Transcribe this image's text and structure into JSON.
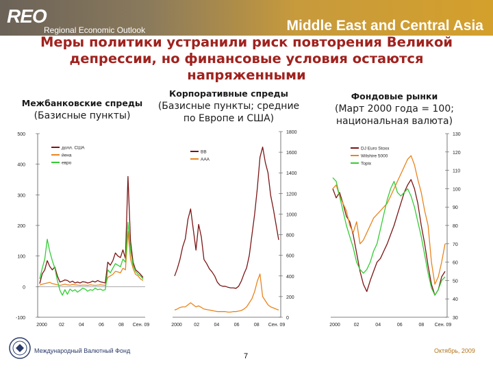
{
  "header": {
    "logo": "REO",
    "logo_subtitle": "Regional Economic Outlook",
    "region": "Middle East and Central Asia"
  },
  "slide_title": "Меры политики устранили риск повторения Великой депрессии, но финансовые условия остаются напряженными",
  "footer": {
    "org": "Международный Валютный Фонд",
    "page": "7",
    "date": "Октябрь, 2009"
  },
  "colors": {
    "dark_red": "#7a1414",
    "orange": "#e8841c",
    "green": "#33cc33",
    "title_red": "#a0221e"
  },
  "chart_data": [
    {
      "type": "line",
      "title": "Межбанковские спреды",
      "subtitle": "(Базисные пункты)",
      "x_tick_labels": [
        "2000",
        "02",
        "04",
        "06",
        "08",
        "Сен. 09"
      ],
      "y_tick_labels": [
        "500",
        "400",
        "300",
        "200",
        "100",
        "0",
        "-100"
      ],
      "ylim": [
        -100,
        500
      ],
      "series": [
        {
          "name": "долл. США",
          "color": "#7a1414",
          "values": [
            10,
            42,
            55,
            85,
            66,
            55,
            64,
            35,
            15,
            18,
            22,
            20,
            14,
            18,
            12,
            15,
            12,
            16,
            15,
            12,
            14,
            18,
            15,
            20,
            16,
            14,
            12,
            80,
            70,
            85,
            110,
            100,
            95,
            120,
            92,
            360,
            150,
            80,
            55,
            48,
            40,
            30
          ]
        },
        {
          "name": "йена",
          "color": "#e8841c",
          "values": [
            5,
            8,
            10,
            12,
            14,
            10,
            8,
            6,
            4,
            6,
            8,
            6,
            5,
            7,
            6,
            5,
            4,
            5,
            5,
            4,
            6,
            5,
            4,
            5,
            6,
            5,
            4,
            30,
            35,
            40,
            50,
            48,
            45,
            60,
            55,
            180,
            90,
            60,
            40,
            35,
            25,
            20
          ]
        },
        {
          "name": "евро",
          "color": "#33cc33",
          "values": [
            25,
            60,
            90,
            155,
            115,
            85,
            60,
            20,
            -12,
            -28,
            -10,
            -25,
            -8,
            -15,
            -10,
            -18,
            -12,
            -5,
            -8,
            -15,
            -10,
            -12,
            -5,
            -10,
            -8,
            -12,
            -10,
            55,
            45,
            60,
            75,
            70,
            65,
            90,
            80,
            210,
            120,
            70,
            50,
            40,
            35,
            25
          ]
        }
      ]
    },
    {
      "type": "line",
      "title": "Корпоративные спреды",
      "subtitle": "(Базисные пункты; средние по Европе и США)",
      "x_tick_labels": [
        "2000",
        "02",
        "04",
        "06",
        "08",
        "Сен. 09"
      ],
      "y_tick_labels": [
        "1800",
        "1600",
        "1400",
        "1200",
        "1000",
        "800",
        "600",
        "400",
        "200",
        "0"
      ],
      "ylim": [
        0,
        1800
      ],
      "series": [
        {
          "name": "BB",
          "color": "#7a1414",
          "values": [
            400,
            470,
            560,
            680,
            760,
            950,
            1050,
            850,
            650,
            900,
            780,
            560,
            520,
            470,
            440,
            400,
            340,
            310,
            300,
            300,
            290,
            285,
            285,
            280,
            300,
            350,
            420,
            480,
            600,
            800,
            1000,
            1250,
            1550,
            1650,
            1500,
            1400,
            1180,
            1050,
            900,
            750
          ]
        },
        {
          "name": "AAA",
          "color": "#e8841c",
          "values": [
            70,
            80,
            95,
            100,
            100,
            120,
            140,
            120,
            100,
            110,
            95,
            80,
            75,
            70,
            65,
            60,
            55,
            55,
            55,
            55,
            50,
            50,
            55,
            55,
            60,
            65,
            80,
            100,
            140,
            180,
            250,
            350,
            420,
            200,
            160,
            120,
            100,
            90,
            80,
            70
          ]
        }
      ]
    },
    {
      "type": "line",
      "title": "Фондовые рынки",
      "subtitle": "(Март 2000 года = 100; национальная валюта)",
      "x_tick_labels": [
        "2000",
        "02",
        "04",
        "06",
        "08",
        "Сен. 09"
      ],
      "y_tick_labels": [
        "130",
        "120",
        "110",
        "100",
        "90",
        "80",
        "70",
        "60",
        "50",
        "40",
        "30"
      ],
      "ylim": [
        30,
        130
      ],
      "series": [
        {
          "name": "DJ Euro Stoxx",
          "color": "#7a1414",
          "values": [
            100,
            95,
            98,
            92,
            85,
            82,
            75,
            65,
            55,
            48,
            44,
            50,
            55,
            60,
            62,
            66,
            70,
            75,
            80,
            86,
            92,
            98,
            102,
            105,
            100,
            92,
            80,
            70,
            58,
            48,
            42,
            45,
            52,
            55
          ]
        },
        {
          "name": "Wilshire 5000",
          "color": "#e8841c",
          "values": [
            100,
            102,
            96,
            92,
            88,
            80,
            76,
            82,
            70,
            72,
            76,
            80,
            84,
            86,
            88,
            90,
            92,
            96,
            100,
            104,
            108,
            112,
            116,
            118,
            113,
            105,
            98,
            88,
            80,
            60,
            48,
            52,
            60,
            70
          ]
        },
        {
          "name": "Topix",
          "color": "#33cc33",
          "values": [
            106,
            104,
            96,
            88,
            80,
            74,
            68,
            60,
            56,
            54,
            56,
            60,
            66,
            70,
            78,
            86,
            94,
            100,
            104,
            98,
            96,
            98,
            100,
            96,
            90,
            82,
            74,
            64,
            54,
            46,
            42,
            45,
            50,
            52
          ]
        }
      ]
    }
  ]
}
